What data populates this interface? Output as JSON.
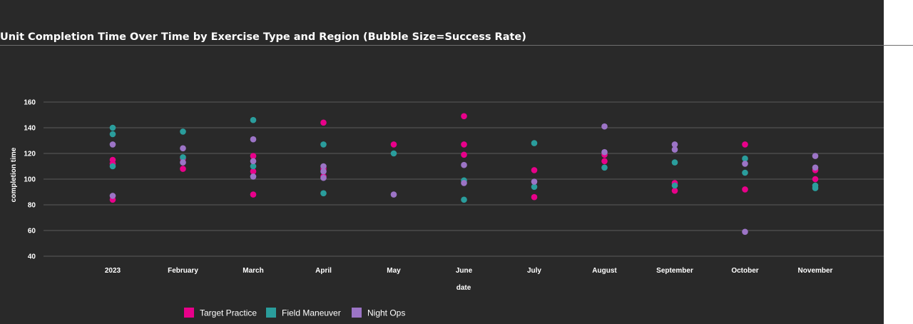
{
  "chart_data": {
    "type": "scatter",
    "title": "Unit Completion Time Over Time by Exercise Type and Region (Bubble Size=Success Rate)",
    "xlabel": "date",
    "ylabel": "completion time",
    "x_ticks": [
      "2023",
      "February",
      "March",
      "April",
      "May",
      "June",
      "July",
      "August",
      "September",
      "October",
      "November"
    ],
    "y_ticks": [
      40,
      60,
      80,
      100,
      120,
      140,
      160
    ],
    "ylim": [
      40,
      160
    ],
    "grid": "horizontal",
    "legend_position": "bottom-left",
    "series": [
      {
        "name": "Target Practice",
        "color": "#e8008a",
        "points": [
          {
            "x": "2023-01-01",
            "y": 84
          },
          {
            "x": "2023-01-01",
            "y": 112
          },
          {
            "x": "2023-01-01",
            "y": 115
          },
          {
            "x": "2023-02-01",
            "y": 108
          },
          {
            "x": "2023-02-01",
            "y": 116
          },
          {
            "x": "2023-03-01",
            "y": 88
          },
          {
            "x": "2023-03-01",
            "y": 106
          },
          {
            "x": "2023-03-01",
            "y": 118
          },
          {
            "x": "2023-04-01",
            "y": 102
          },
          {
            "x": "2023-04-01",
            "y": 108
          },
          {
            "x": "2023-04-01",
            "y": 144
          },
          {
            "x": "2023-05-01",
            "y": 127
          },
          {
            "x": "2023-06-01",
            "y": 119
          },
          {
            "x": "2023-06-01",
            "y": 127
          },
          {
            "x": "2023-06-01",
            "y": 149
          },
          {
            "x": "2023-07-01",
            "y": 86
          },
          {
            "x": "2023-07-01",
            "y": 107
          },
          {
            "x": "2023-08-01",
            "y": 114
          },
          {
            "x": "2023-08-01",
            "y": 119
          },
          {
            "x": "2023-09-01",
            "y": 91
          },
          {
            "x": "2023-09-01",
            "y": 97
          },
          {
            "x": "2023-10-01",
            "y": 92
          },
          {
            "x": "2023-10-01",
            "y": 127
          },
          {
            "x": "2023-11-01",
            "y": 100
          },
          {
            "x": "2023-11-01",
            "y": 107
          }
        ]
      },
      {
        "name": "Field Maneuver",
        "color": "#2a9d9c",
        "points": [
          {
            "x": "2023-01-01",
            "y": 110
          },
          {
            "x": "2023-01-01",
            "y": 135
          },
          {
            "x": "2023-01-01",
            "y": 140
          },
          {
            "x": "2023-02-01",
            "y": 117
          },
          {
            "x": "2023-02-01",
            "y": 137
          },
          {
            "x": "2023-03-01",
            "y": 110
          },
          {
            "x": "2023-03-01",
            "y": 146
          },
          {
            "x": "2023-04-01",
            "y": 89
          },
          {
            "x": "2023-04-01",
            "y": 127
          },
          {
            "x": "2023-05-01",
            "y": 120
          },
          {
            "x": "2023-06-01",
            "y": 84
          },
          {
            "x": "2023-06-01",
            "y": 99
          },
          {
            "x": "2023-07-01",
            "y": 94
          },
          {
            "x": "2023-07-01",
            "y": 128
          },
          {
            "x": "2023-08-01",
            "y": 109
          },
          {
            "x": "2023-09-01",
            "y": 95
          },
          {
            "x": "2023-09-01",
            "y": 113
          },
          {
            "x": "2023-10-01",
            "y": 105
          },
          {
            "x": "2023-10-01",
            "y": 116
          },
          {
            "x": "2023-11-01",
            "y": 93
          },
          {
            "x": "2023-11-01",
            "y": 95
          }
        ]
      },
      {
        "name": "Night Ops",
        "color": "#9c74c6",
        "points": [
          {
            "x": "2023-01-01",
            "y": 87
          },
          {
            "x": "2023-01-01",
            "y": 127
          },
          {
            "x": "2023-02-01",
            "y": 113
          },
          {
            "x": "2023-02-01",
            "y": 124
          },
          {
            "x": "2023-03-01",
            "y": 102
          },
          {
            "x": "2023-03-01",
            "y": 114
          },
          {
            "x": "2023-03-01",
            "y": 131
          },
          {
            "x": "2023-04-01",
            "y": 101
          },
          {
            "x": "2023-04-01",
            "y": 106
          },
          {
            "x": "2023-04-01",
            "y": 110
          },
          {
            "x": "2023-05-01",
            "y": 88
          },
          {
            "x": "2023-06-01",
            "y": 97
          },
          {
            "x": "2023-06-01",
            "y": 111
          },
          {
            "x": "2023-07-01",
            "y": 98
          },
          {
            "x": "2023-08-01",
            "y": 121
          },
          {
            "x": "2023-08-01",
            "y": 141
          },
          {
            "x": "2023-09-01",
            "y": 123
          },
          {
            "x": "2023-09-01",
            "y": 127
          },
          {
            "x": "2023-10-01",
            "y": 59
          },
          {
            "x": "2023-10-01",
            "y": 112
          },
          {
            "x": "2023-11-01",
            "y": 109
          },
          {
            "x": "2023-11-01",
            "y": 118
          }
        ]
      }
    ]
  }
}
